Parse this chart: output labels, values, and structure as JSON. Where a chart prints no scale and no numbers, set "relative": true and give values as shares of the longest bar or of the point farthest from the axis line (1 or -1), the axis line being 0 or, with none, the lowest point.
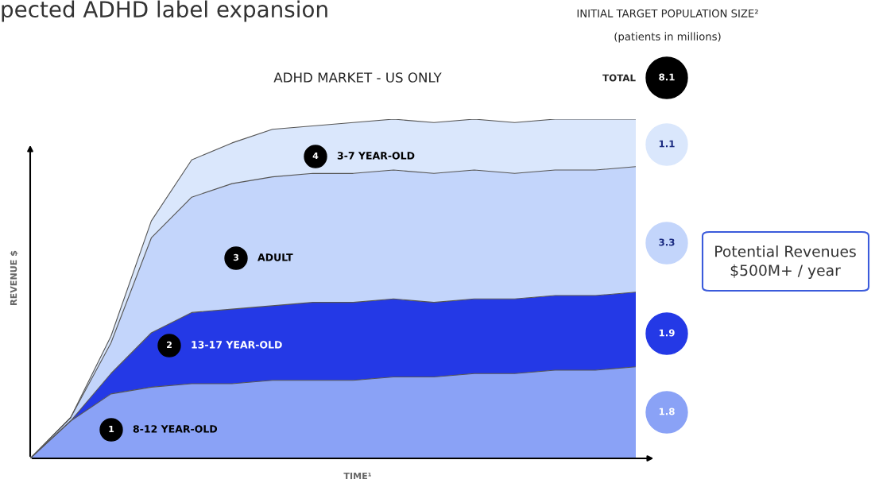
{
  "chart_data": {
    "type": "area",
    "stacked": true,
    "relative": true,
    "title": "pected ADHD label expansion",
    "xlabel": "TIME¹",
    "ylabel": "REVENUE $",
    "grid": false,
    "categories": [
      null,
      null,
      null,
      null,
      null,
      null,
      null,
      null,
      null,
      null,
      null,
      null,
      null,
      null,
      null,
      null
    ],
    "series": [
      {
        "name": "8-12 YEAR-OLD",
        "color": "#8aa2f6",
        "values": [
          0,
          0.11,
          0.19,
          0.21,
          0.22,
          0.22,
          0.23,
          0.23,
          0.23,
          0.24,
          0.24,
          0.25,
          0.25,
          0.26,
          0.26,
          0.27
        ]
      },
      {
        "name": "13-17 YEAR-OLD",
        "color": "#2439e6",
        "values": [
          0,
          0.0,
          0.06,
          0.16,
          0.21,
          0.22,
          0.22,
          0.23,
          0.23,
          0.23,
          0.22,
          0.22,
          0.22,
          0.22,
          0.22,
          0.22
        ]
      },
      {
        "name": "ADULT",
        "color": "#c3d5fb",
        "values": [
          0,
          0.01,
          0.09,
          0.28,
          0.34,
          0.37,
          0.38,
          0.38,
          0.38,
          0.38,
          0.38,
          0.38,
          0.37,
          0.37,
          0.37,
          0.37
        ]
      },
      {
        "name": "3-7 YEAR-OLD",
        "color": "#dae7fc",
        "values": [
          0,
          0.0,
          0.02,
          0.05,
          0.11,
          0.12,
          0.14,
          0.14,
          0.15,
          0.15,
          0.15,
          0.15,
          0.15,
          0.15,
          0.15,
          0.14
        ]
      }
    ],
    "annotations": [
      "1",
      "2",
      "3",
      "4",
      "ADHD MARKET - US ONLY",
      "INITIAL TARGET POPULATION SIZE²",
      "(patients in millions)",
      "TOTAL",
      "8.1",
      "1.8",
      "1.9",
      "3.3",
      "1.1",
      "Potential Revenues\n$500M+ / year"
    ]
  }
}
